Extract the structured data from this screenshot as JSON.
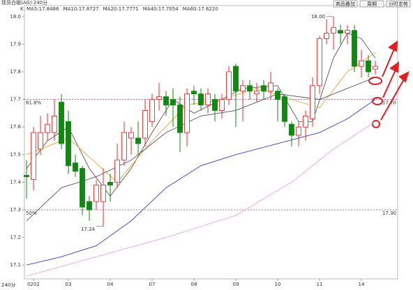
{
  "chart_data": {
    "type": "candlestick",
    "title": "现货白银(AG)·240分",
    "legend_prefix": "K",
    "buttons": [
      "商品叠加",
      "周期",
      "分时走势"
    ],
    "period_label": "240分",
    "candles": {
      "open": [
        17.425,
        17.41,
        17.52,
        17.58,
        17.58,
        17.69,
        17.62,
        17.47,
        17.45,
        17.33,
        17.33,
        17.33,
        17.4,
        17.4,
        17.48,
        17.56,
        17.56,
        17.56,
        17.62,
        17.7,
        17.71,
        17.7,
        17.68,
        17.58,
        17.73,
        17.72,
        17.68,
        17.7,
        17.66,
        17.7,
        17.82,
        17.73,
        17.75,
        17.72,
        17.75,
        17.73,
        17.73,
        17.71,
        17.61,
        17.57,
        17.6,
        17.63,
        17.75,
        17.92,
        17.94,
        17.95,
        17.94,
        17.95,
        17.82,
        17.84,
        17.81
      ],
      "close": [
        17.42,
        17.58,
        17.58,
        17.61,
        17.64,
        17.54,
        17.46,
        17.44,
        17.31,
        17.3,
        17.39,
        17.39,
        17.39,
        17.48,
        17.58,
        17.58,
        17.54,
        17.66,
        17.7,
        17.71,
        17.68,
        17.68,
        17.58,
        17.72,
        17.72,
        17.68,
        17.72,
        17.66,
        17.7,
        17.8,
        17.73,
        17.75,
        17.73,
        17.73,
        17.73,
        17.76,
        17.7,
        17.62,
        17.57,
        17.6,
        17.64,
        17.75,
        17.92,
        17.94,
        17.96,
        17.94,
        17.95,
        17.82,
        17.84,
        17.8,
        17.82
      ],
      "high": [
        17.48,
        17.6,
        17.64,
        17.65,
        17.7,
        17.72,
        17.66,
        17.5,
        17.46,
        17.35,
        17.41,
        17.45,
        17.43,
        17.54,
        17.62,
        17.6,
        17.62,
        17.7,
        17.72,
        17.76,
        17.73,
        17.74,
        17.71,
        17.74,
        17.75,
        17.74,
        17.74,
        17.72,
        17.72,
        17.82,
        17.83,
        17.77,
        17.77,
        17.76,
        17.77,
        17.8,
        17.74,
        17.72,
        17.62,
        17.62,
        17.66,
        17.78,
        17.93,
        17.99,
        18.0,
        17.97,
        17.97,
        17.97,
        17.88,
        17.86,
        17.84
      ],
      "low": [
        17.34,
        17.37,
        17.5,
        17.55,
        17.55,
        17.52,
        17.43,
        17.42,
        17.28,
        17.26,
        17.3,
        17.24,
        17.33,
        17.38,
        17.46,
        17.5,
        17.5,
        17.53,
        17.6,
        17.66,
        17.64,
        17.6,
        17.51,
        17.53,
        17.68,
        17.66,
        17.65,
        17.62,
        17.63,
        17.68,
        17.6,
        17.62,
        17.7,
        17.69,
        17.7,
        17.7,
        17.62,
        17.6,
        17.53,
        17.53,
        17.55,
        17.6,
        17.72,
        17.9,
        17.88,
        17.9,
        17.9,
        17.8,
        17.78,
        17.78,
        17.79
      ]
    },
    "up_color": "#e03030",
    "down_color": "#118811",
    "series": [
      {
        "name": "MA5:17.8486",
        "color": "#555555",
        "x": [
          0,
          3,
          6,
          9,
          12,
          15,
          18,
          21,
          24,
          28,
          31,
          36,
          39,
          41,
          44,
          46,
          48,
          50
        ],
        "values": [
          17.45,
          17.55,
          17.6,
          17.45,
          17.35,
          17.45,
          17.58,
          17.7,
          17.65,
          17.7,
          17.74,
          17.75,
          17.62,
          17.62,
          17.85,
          17.94,
          17.92,
          17.85
        ]
      },
      {
        "name": "MA10:17.8727",
        "color": "#f0a030",
        "x": [
          0,
          6,
          13,
          18,
          23,
          28,
          33,
          38,
          42,
          46,
          50
        ],
        "values": [
          17.5,
          17.56,
          17.4,
          17.55,
          17.68,
          17.7,
          17.74,
          17.7,
          17.67,
          17.8,
          17.87
        ]
      },
      {
        "name": "MA20:17.7771",
        "color": "#505070",
        "x": [
          0,
          5,
          10,
          15,
          20,
          25,
          30,
          36,
          42,
          46,
          50
        ],
        "values": [
          17.26,
          17.38,
          17.42,
          17.48,
          17.58,
          17.64,
          17.66,
          17.72,
          17.7,
          17.74,
          17.78
        ]
      },
      {
        "name": "MA40:17.7054",
        "color": "#3a3aee",
        "x": [
          0,
          5,
          10,
          15,
          20,
          25,
          30,
          36,
          42,
          46,
          50
        ],
        "values": [
          17.1,
          17.13,
          17.17,
          17.26,
          17.38,
          17.46,
          17.5,
          17.54,
          17.58,
          17.63,
          17.7
        ]
      },
      {
        "name": "MA60:17.6220",
        "color": "#f0a0f0",
        "x": [
          0,
          10,
          20,
          30,
          38,
          44,
          50
        ],
        "values": [
          17.06,
          17.13,
          17.2,
          17.28,
          17.4,
          17.52,
          17.62
        ]
      }
    ],
    "levels": [
      {
        "value": 17.7,
        "label": "17.70",
        "ratio": "61.8%"
      },
      {
        "value": 17.3,
        "label": "17.30",
        "ratio": "50%"
      }
    ],
    "annotations": [
      {
        "text": "18.00",
        "value": 18
      },
      {
        "text": "17.24",
        "value": 17.24
      }
    ],
    "xlim": [
      -0.3,
      53.2
    ],
    "xticks": [
      {
        "value": 1,
        "label": "0202"
      },
      {
        "value": 6,
        "label": "03"
      },
      {
        "value": 12,
        "label": "04"
      },
      {
        "value": 18,
        "label": "07"
      },
      {
        "value": 24,
        "label": "08"
      },
      {
        "value": 30,
        "label": "09"
      },
      {
        "value": 36,
        "label": "10"
      },
      {
        "value": 42,
        "label": "11"
      },
      {
        "value": 48,
        "label": "14"
      }
    ],
    "ylim": [
      17.05,
      18.04
    ],
    "yticks": [
      {
        "value": 18,
        "label": "18.0"
      },
      17.9,
      17.8,
      17.7,
      17.6,
      17.5,
      17.4,
      17.3,
      17.2,
      17.1
    ]
  }
}
